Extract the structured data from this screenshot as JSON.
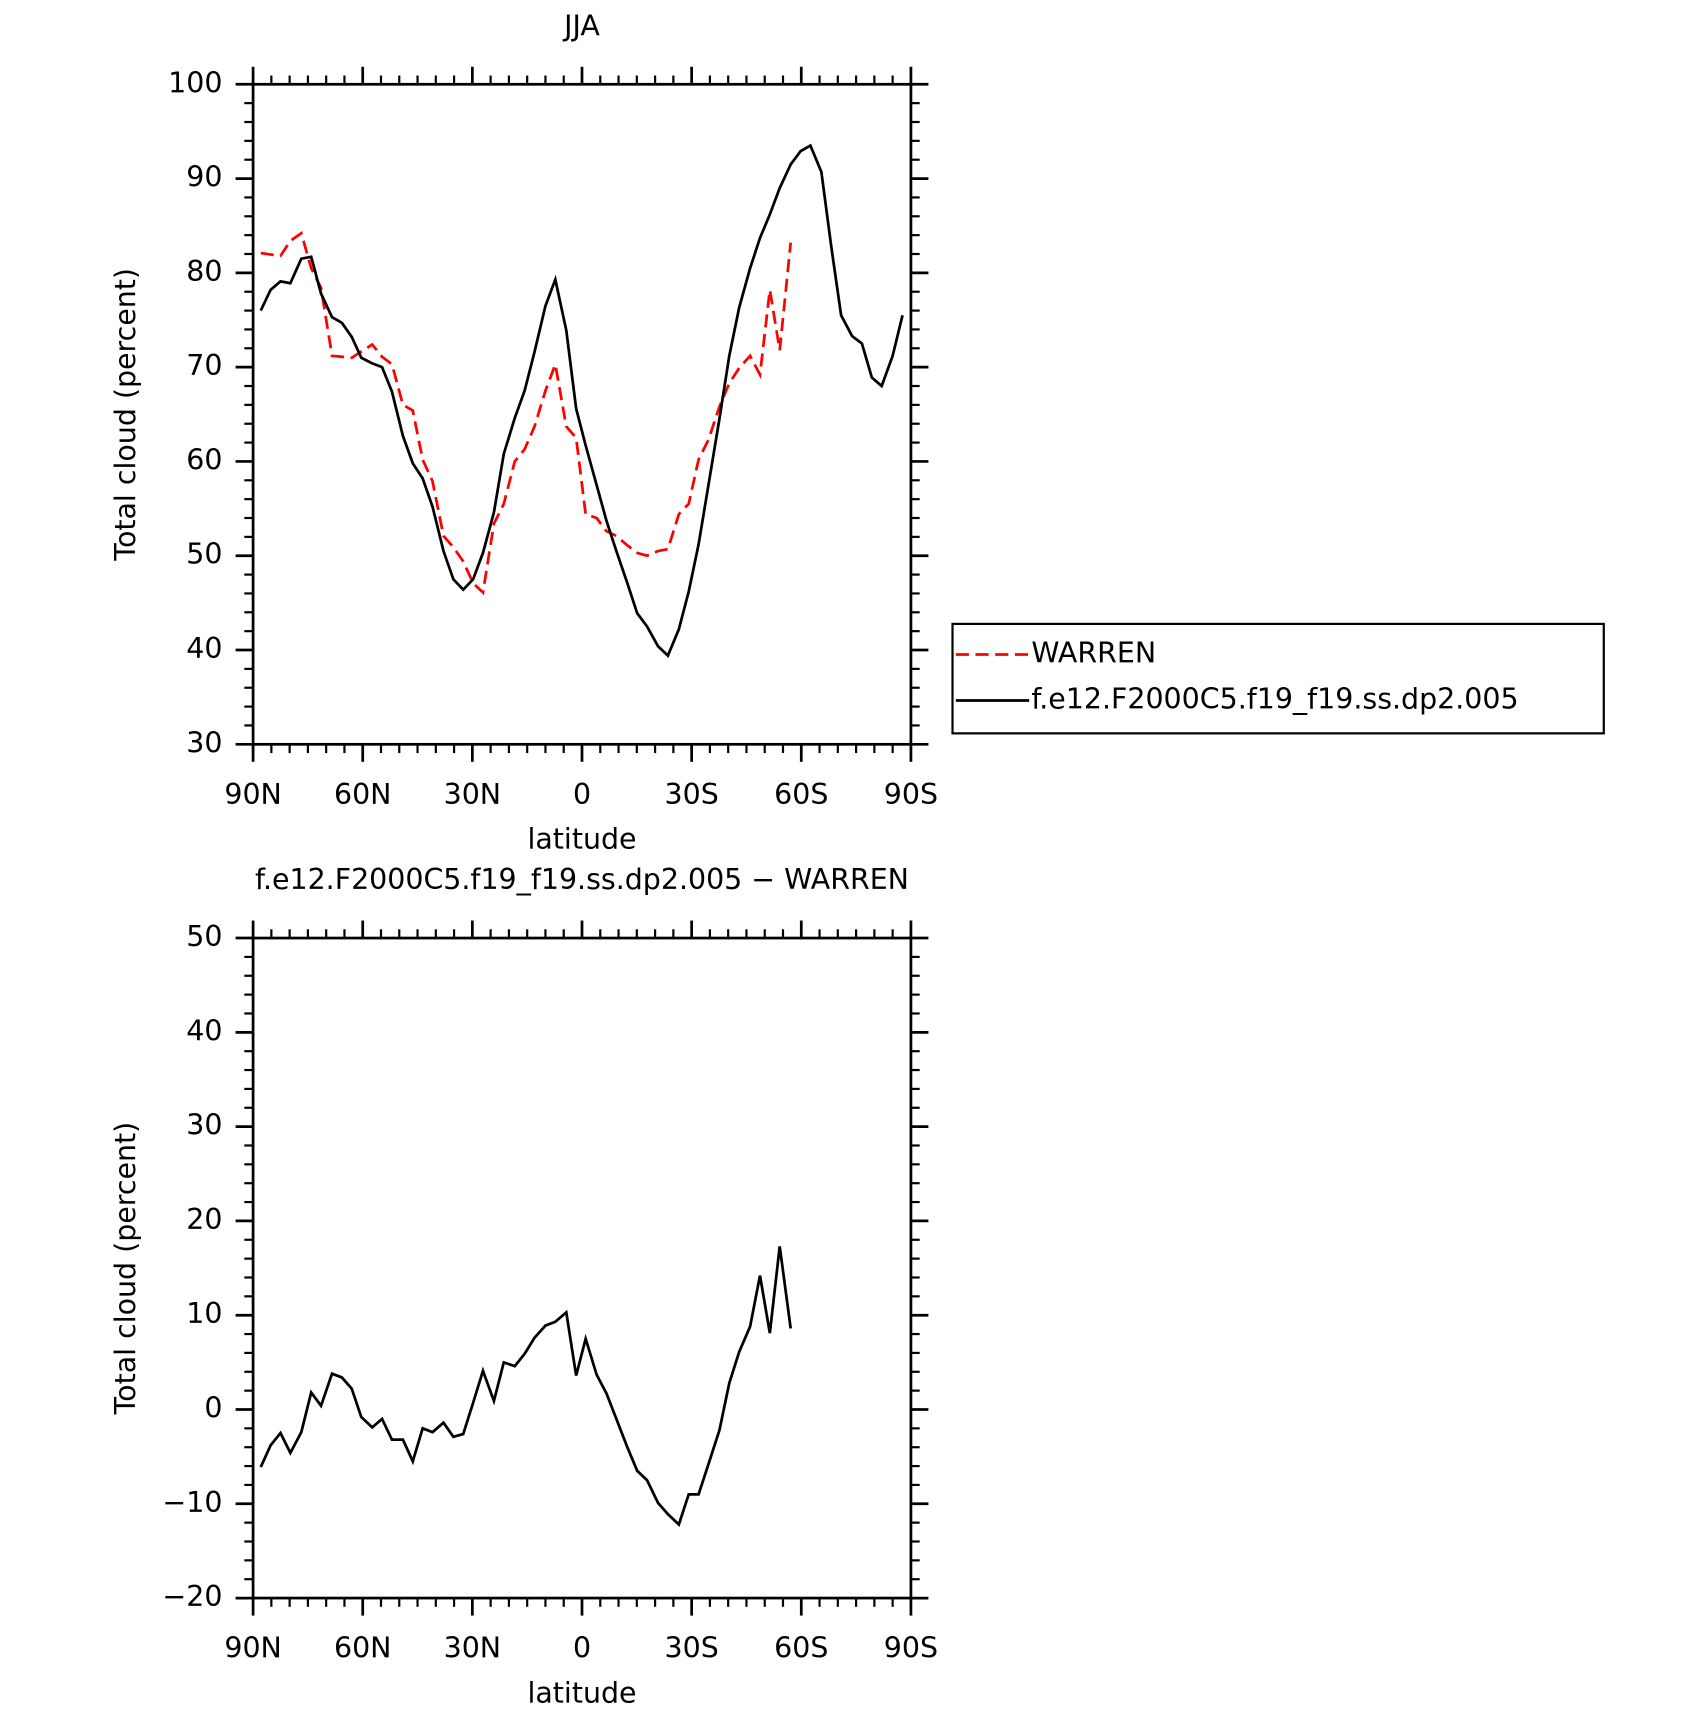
{
  "chart_data": [
    {
      "type": "line",
      "title": "JJA",
      "xlabel": "latitude",
      "ylabel": "Total cloud (percent)",
      "xlim": [
        90,
        -90
      ],
      "xticks": [
        {
          "value": 90,
          "label": "90N"
        },
        {
          "value": 60,
          "label": "60N"
        },
        {
          "value": 30,
          "label": "30N"
        },
        0,
        {
          "value": -30,
          "label": "30S"
        },
        {
          "value": -60,
          "label": "60S"
        },
        {
          "value": -90,
          "label": "90S"
        }
      ],
      "ylim": [
        30,
        100
      ],
      "yticks": [
        30,
        40,
        50,
        60,
        70,
        80,
        90,
        100
      ],
      "legend": "right",
      "series": [
        {
          "name": "WARREN",
          "color": "#ff0000",
          "dash": "dashed",
          "x": [
            87.9,
            82.5,
            79.8,
            76.8,
            74.1,
            71.4,
            68.4,
            63.0,
            57.4,
            54.7,
            52.0,
            49.0,
            46.3,
            43.6,
            40.9,
            37.9,
            35.2,
            32.5,
            29.8,
            27.1,
            24.1,
            21.4,
            18.4,
            15.7,
            13.0,
            10.0,
            7.3,
            4.3,
            1.6,
            -1.0,
            -4.0,
            -6.7,
            -9.4,
            -12.4,
            -15.1,
            -17.8,
            -20.8,
            -23.5,
            -26.5,
            -29.2,
            -31.9,
            -34.6,
            -37.6,
            -40.3,
            -43.0,
            -46.0,
            -48.7,
            -51.4,
            -54.1,
            -57.1
          ],
          "values": [
            82.1,
            81.8,
            83.4,
            84.2,
            80.5,
            78.4,
            71.2,
            71.0,
            72.4,
            71.1,
            70.3,
            66.0,
            65.4,
            60.2,
            57.9,
            52.1,
            50.9,
            49.4,
            47.1,
            46.1,
            53.4,
            55.5,
            60.0,
            61.3,
            63.7,
            67.5,
            70.3,
            63.7,
            62.5,
            54.4,
            54.0,
            52.6,
            52.1,
            51.1,
            50.3,
            50.0,
            50.5,
            50.7,
            54.4,
            55.5,
            60.2,
            62.3,
            65.8,
            68.3,
            69.9,
            71.2,
            69.2,
            78.2,
            71.8,
            83.2
          ]
        },
        {
          "name": "f.e12.F2000C5.f19_f19.ss.dp2.005",
          "color": "#000000",
          "dash": "solid",
          "x": [
            87.9,
            85.2,
            82.5,
            79.8,
            76.8,
            74.1,
            71.4,
            68.4,
            65.7,
            63.0,
            60.4,
            57.4,
            54.7,
            52.0,
            49.0,
            46.3,
            43.6,
            40.9,
            37.9,
            35.2,
            32.5,
            29.8,
            27.1,
            24.1,
            21.4,
            18.4,
            15.7,
            13.0,
            10.0,
            7.3,
            4.3,
            1.6,
            -1.0,
            -4.0,
            -6.7,
            -9.4,
            -12.4,
            -15.1,
            -17.8,
            -20.8,
            -23.5,
            -26.5,
            -29.2,
            -31.9,
            -34.6,
            -37.6,
            -40.3,
            -43.0,
            -46.0,
            -48.7,
            -51.4,
            -54.1,
            -57.1,
            -59.8,
            -62.5,
            -65.5,
            -68.2,
            -70.9,
            -73.9,
            -76.6,
            -79.3,
            -82.0,
            -85.0,
            -87.7
          ],
          "values": [
            76.0,
            78.2,
            79.1,
            78.9,
            81.5,
            81.7,
            77.8,
            75.3,
            74.7,
            73.2,
            71.0,
            70.4,
            70.0,
            67.4,
            62.7,
            59.8,
            58.2,
            55.2,
            50.5,
            47.5,
            46.4,
            47.5,
            50.3,
            54.6,
            60.8,
            64.6,
            67.5,
            71.6,
            76.5,
            79.3,
            73.9,
            65.6,
            61.7,
            57.5,
            53.7,
            50.5,
            47.1,
            43.9,
            42.5,
            40.4,
            39.4,
            42.2,
            46.2,
            51.2,
            57.5,
            64.5,
            71.2,
            76.3,
            80.5,
            83.7,
            86.2,
            89.0,
            91.5,
            92.9,
            93.5,
            90.7,
            82.8,
            75.5,
            73.3,
            72.5,
            68.9,
            68.0,
            71.2,
            75.5
          ]
        }
      ]
    },
    {
      "type": "line",
      "title": "f.e12.F2000C5.f19_f19.ss.dp2.005 − WARREN",
      "xlabel": "latitude",
      "ylabel": "Total cloud (percent)",
      "xlim": [
        90,
        -90
      ],
      "xticks": [
        {
          "value": 90,
          "label": "90N"
        },
        {
          "value": 60,
          "label": "60N"
        },
        {
          "value": 30,
          "label": "30N"
        },
        0,
        {
          "value": -30,
          "label": "30S"
        },
        {
          "value": -60,
          "label": "60S"
        },
        {
          "value": -90,
          "label": "90S"
        }
      ],
      "ylim": [
        -20,
        50
      ],
      "yticks": [
        {
          "value": -20,
          "label": "−20"
        },
        {
          "value": -10,
          "label": "−10"
        },
        0,
        10,
        20,
        30,
        40,
        50
      ],
      "series": [
        {
          "color": "#000000",
          "dash": "solid",
          "x": [
            87.9,
            85.2,
            82.5,
            79.8,
            76.8,
            74.1,
            71.4,
            68.4,
            65.7,
            63.0,
            60.4,
            57.4,
            54.7,
            52.0,
            49.0,
            46.3,
            43.6,
            40.9,
            37.9,
            35.2,
            32.5,
            29.8,
            27.1,
            24.1,
            21.4,
            18.4,
            15.7,
            13.0,
            10.0,
            7.3,
            4.3,
            1.6,
            -1.0,
            -4.0,
            -6.7,
            -9.4,
            -12.4,
            -15.1,
            -17.8,
            -20.8,
            -23.5,
            -26.5,
            -29.2,
            -31.9,
            -34.6,
            -37.6,
            -40.3,
            -43.0,
            -46.0,
            -48.7,
            -51.4,
            -54.1,
            -57.1
          ],
          "values": [
            -6.1,
            -3.8,
            -2.5,
            -4.6,
            -2.4,
            1.8,
            0.4,
            3.8,
            3.4,
            2.2,
            -0.8,
            -1.9,
            -1.0,
            -3.2,
            -3.2,
            -5.5,
            -2.0,
            -2.4,
            -1.4,
            -2.9,
            -2.6,
            0.7,
            4.1,
            0.9,
            5.0,
            4.6,
            5.9,
            7.6,
            8.9,
            9.3,
            10.3,
            3.6,
            7.5,
            3.7,
            1.7,
            -1.0,
            -4.0,
            -6.5,
            -7.5,
            -9.9,
            -11.1,
            -12.2,
            -9.0,
            -9.0,
            -5.8,
            -2.2,
            2.8,
            6.1,
            8.8,
            14.2,
            8.1,
            17.3,
            8.6
          ]
        }
      ]
    }
  ]
}
